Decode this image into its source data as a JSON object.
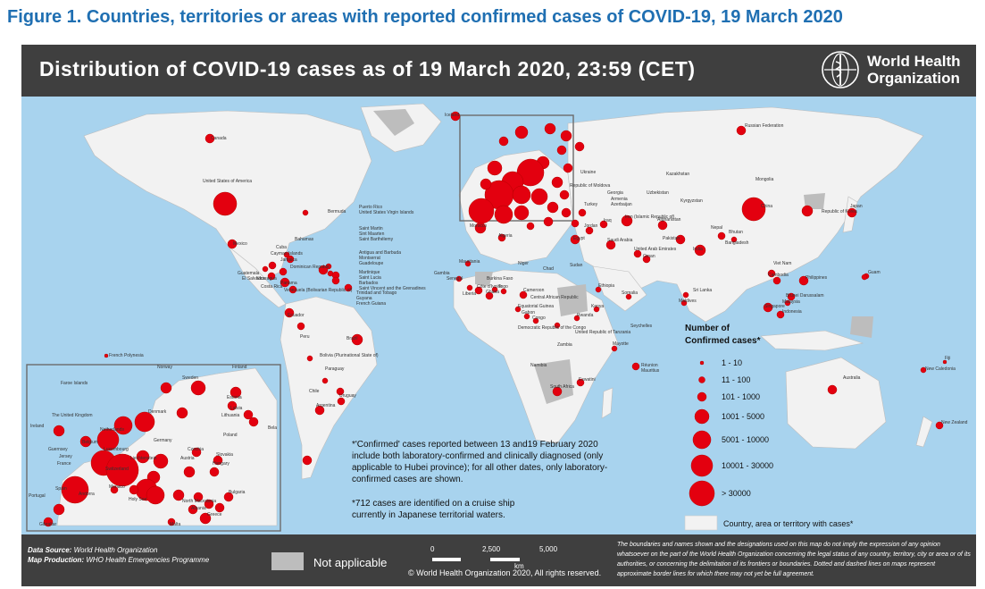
{
  "caption": "Figure 1. Countries, territories or areas with reported confirmed cases of COVID-19, 19 March 2020",
  "header": {
    "title": "Distribution of COVID-19  cases as of 19 March 2020, 23:59 (CET)",
    "org_line1": "World Health",
    "org_line2": "Organization"
  },
  "colors": {
    "ocean": "#a8d3ee",
    "land": "#f2f2f2",
    "na": "#bdbdbd",
    "bubble": "#e3000f",
    "dark": "#3f3f3f"
  },
  "map_labels": {
    "canada": "Canada",
    "usa": "United States of America",
    "mexico": "Mexico",
    "bermuda": "Bermuda",
    "bahamas": "Bahamas",
    "cuba": "Cuba",
    "cayman": "Cayman Islands",
    "jamaica": "Jamaica",
    "dominican": "Dominican Republic",
    "guatemala": "Guatemala",
    "el_salvador": "El Salvador",
    "nicaragua": "Nicaragua",
    "costa_rica": "Costa Rica",
    "panama": "Panama",
    "venezuela": "Venezuela (Bolivarian Republic of)",
    "trinidad": "Trinidad and Tobago",
    "guyana": "Guyana",
    "french_guiana": "French Guiana",
    "puerto_rico": "Puerto Rico",
    "usvi": "United States Virgin Islands",
    "saint_martin": "Saint Martin",
    "sint_maarten": "Sint Maarten",
    "saint_barth": "Saint Barthélemy",
    "antigua": "Antigua and Barbuda",
    "montserrat": "Montserrat",
    "guadeloupe": "Guadeloupe",
    "martinique": "Martinique",
    "saint_lucia": "Saint Lucia",
    "barbados": "Barbados",
    "saint_vincent": "Saint Vincent and the Grenadines",
    "ecuador": "Ecuador",
    "peru": "Peru",
    "brazil": "Brazil",
    "bolivia": "Bolivia (Plurinational State of)",
    "paraguay": "Paraguay",
    "chile": "Chile",
    "argentina": "Argentina",
    "uruguay": "Uruguay",
    "french_polynesia": "French Polynesia",
    "iceland": "Iceland",
    "morocco": "Morocco",
    "algeria": "Algeria",
    "mauritania": "Mauritania",
    "senegal": "Senegal",
    "gambia": "Gambia",
    "burkina": "Burkina Faso",
    "cote": "Côte d’Ivoire",
    "ghana": "Ghana",
    "togo": "Togo",
    "liberia": "Liberia",
    "niger": "Niger",
    "chad": "Chad",
    "sudan": "Sudan",
    "egypt": "Egypt",
    "cameroon": "Cameroon",
    "car": "Central African Republic",
    "eq_guinea": "Equatorial Guinea",
    "gabon": "Gabon",
    "congo": "Congo",
    "drc": "Democratic Republic of the Congo",
    "ethiopia": "Ethiopia",
    "somalia": "Somalia",
    "kenya": "Kenya",
    "rwanda": "Rwanda",
    "tanzania": "United Republic of Tanzania",
    "seychelles": "Seychelles",
    "zambia": "Zambia",
    "namibia": "Namibia",
    "south_africa": "South Africa",
    "mayotte": "Mayotte",
    "reunion": "Réunion",
    "mauritius": "Mauritius",
    "eswatini": "Eswatini",
    "russia": "Russian Federation",
    "ukraine": "Ukraine",
    "moldova": "Republic of Moldova",
    "georgia": "Georgia",
    "armenia": "Armenia",
    "azerbaijan": "Azerbaijan",
    "turkey": "Turkey",
    "kazakhstan": "Kazakhstan",
    "uzbekistan": "Uzbekistan",
    "kyrgyzstan": "Kyrgyzstan",
    "afghanistan": "Afghanistan",
    "pakistan": "Pakistan",
    "india": "India",
    "nepal": "Nepal",
    "bhutan": "Bhutan",
    "bangladesh": "Bangladesh",
    "sri_lanka": "Sri Lanka",
    "maldives": "Maldives",
    "iran": "Iran (Islamic Republic of)",
    "iraq": "Iraq",
    "saudi": "Saudi Arabia",
    "uae": "United Arab Emirates",
    "oman": "Oman",
    "jordan": "Jordan",
    "mongolia": "Mongolia",
    "china": "China",
    "korea": "Republic of Korea",
    "japan": "Japan",
    "viet_nam": "Viet Nam",
    "cambodia": "Cambodia",
    "philippines": "Philippines",
    "brunei": "Brunei Darussalam",
    "malaysia": "Malaysia",
    "singapore": "Singapore",
    "indonesia": "Indonesia",
    "guam": "Guam",
    "australia": "Australia",
    "new_zealand": "New Zealand",
    "fiji": "Fiji",
    "new_caledonia": "New Caledonia",
    "inset_faroe": "Faroe Islands",
    "inset_norway": "Norway",
    "inset_finland": "Finland",
    "inset_sweden": "Sweden",
    "inset_estonia": "Estonia",
    "inset_latvia": "Latvia",
    "inset_lithuania": "Lithuania",
    "inset_uk": "The United Kingdom",
    "inset_denmark": "Denmark",
    "inset_ireland": "Ireland",
    "inset_netherlands": "Netherlands",
    "inset_belgium": "Belgium",
    "inset_guernsey": "Guernsey",
    "inset_jersey": "Jersey",
    "inset_luxembourg": "Luxembourg",
    "inset_germany": "Germany",
    "inset_poland": "Poland",
    "inset_czechia": "Czechia",
    "inset_slovakia": "Slovakia",
    "inset_austria": "Austria",
    "inset_liechtenstein": "Liechtenstein",
    "inset_hungary": "Hungary",
    "inset_france": "France",
    "inset_switzerland": "Switzerland",
    "inset_monaco": "Monaco",
    "inset_andorra": "Andorra",
    "inset_spain": "Spain",
    "inset_portugal": "Portugal",
    "inset_gibraltar": "Gibraltar",
    "inset_bulgaria": "Bulgaria",
    "inset_north_mac": "North Macedonia",
    "inset_albania": "Albania",
    "inset_greece": "Greece",
    "inset_malta": "Malta",
    "inset_holy_see": "Holy See",
    "inset_bela": "Bela"
  },
  "notes": {
    "confirmed_l1": "*'Confirmed' cases reported between 13 and19 February 2020",
    "confirmed_l2": "include both laboratory-confirmed and clinically diagnosed (only",
    "confirmed_l3": "applicable to Hubei province); for all other dates, only laboratory-",
    "confirmed_l4": "confirmed cases are shown.",
    "cruise_l1": "*712 cases are identified on a cruise ship",
    "cruise_l2": "currently in Japanese territorial waters."
  },
  "legend": {
    "title_l1": "Number of",
    "title_l2": "Confirmed cases*",
    "bins": [
      "1 - 10",
      "11 - 100",
      "101 - 1000",
      "1001 - 5000",
      "5001 - 10000",
      "10001 - 30000",
      "> 30000"
    ],
    "country_label": "Country, area or territory with cases*"
  },
  "footer": {
    "source_label": "Data Source:",
    "source_value": "World Health Organization",
    "production_label": "Map Production:",
    "production_value": "WHO Health Emergencies Programme",
    "not_applicable": "Not applicable",
    "scale_0": "0",
    "scale_1": "2,500",
    "scale_2": "5,000",
    "scale_unit": "km",
    "copyright": "© World Health Organization  2020,  All rights reserved.",
    "disclaimer": "The boundaries and names shown and the designations used on this map do not imply the expression of any opinion whatsoever on the part of the World Health Organization concerning the legal status of any country, territory, city or area or of its authorities, or concerning the delimitation of its frontiers or boundaries. Dotted and dashed lines on maps represent approximate border lines for which there may not yet be full agreement."
  }
}
